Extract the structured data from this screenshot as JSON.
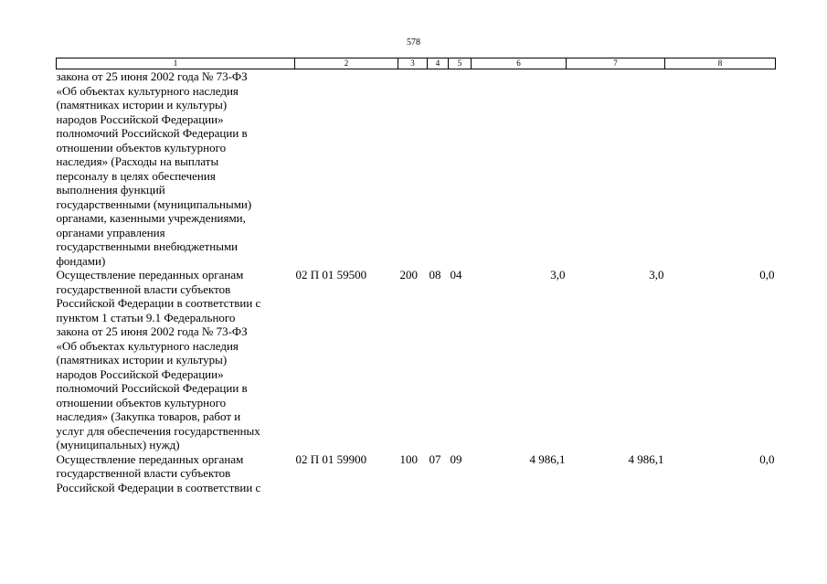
{
  "page_number": "578",
  "header_cols": [
    "1",
    "2",
    "3",
    "4",
    "5",
    "6",
    "7",
    "8"
  ],
  "rows": [
    {
      "description": "закона от 25 июня 2002 года № 73-ФЗ\n«Об объектах культурного наследия\n(памятниках истории и культуры)\nнародов Российской Федерации»\nполномочий Российской Федерации в\nотношении объектов культурного\nнаследия» (Расходы на выплаты\nперсоналу в целях обеспечения\nвыполнения функций\nгосударственными (муниципальными)\nорганами, казенными учреждениями,\nорганами управления\nгосударственными внебюджетными\nфондами)",
      "code": "",
      "c3": "",
      "c4": "",
      "c5": "",
      "c6": "",
      "c7": "",
      "c8": ""
    },
    {
      "description": "Осуществление переданных органам\nгосударственной власти субъектов\nРоссийской Федерации в соответствии с\nпунктом 1 статьи 9.1 Федерального\nзакона от 25 июня 2002 года № 73-ФЗ\n«Об объектах культурного наследия\n(памятниках истории и культуры)\nнародов Российской Федерации»\nполномочий Российской Федерации в\nотношении объектов культурного\nнаследия» (Закупка товаров, работ и\nуслуг для обеспечения государственных\n(муниципальных) нужд)",
      "code": "02 П 01 59500",
      "c3": "200",
      "c4": "08",
      "c5": "04",
      "c6": "3,0",
      "c7": "3,0",
      "c8": "0,0"
    },
    {
      "description": "Осуществление переданных органам\nгосударственной власти субъектов\nРоссийской Федерации в соответствии с",
      "code": "02 П 01 59900",
      "c3": "100",
      "c4": "07",
      "c5": "09",
      "c6": "4 986,1",
      "c7": "4 986,1",
      "c8": "0,0"
    }
  ]
}
